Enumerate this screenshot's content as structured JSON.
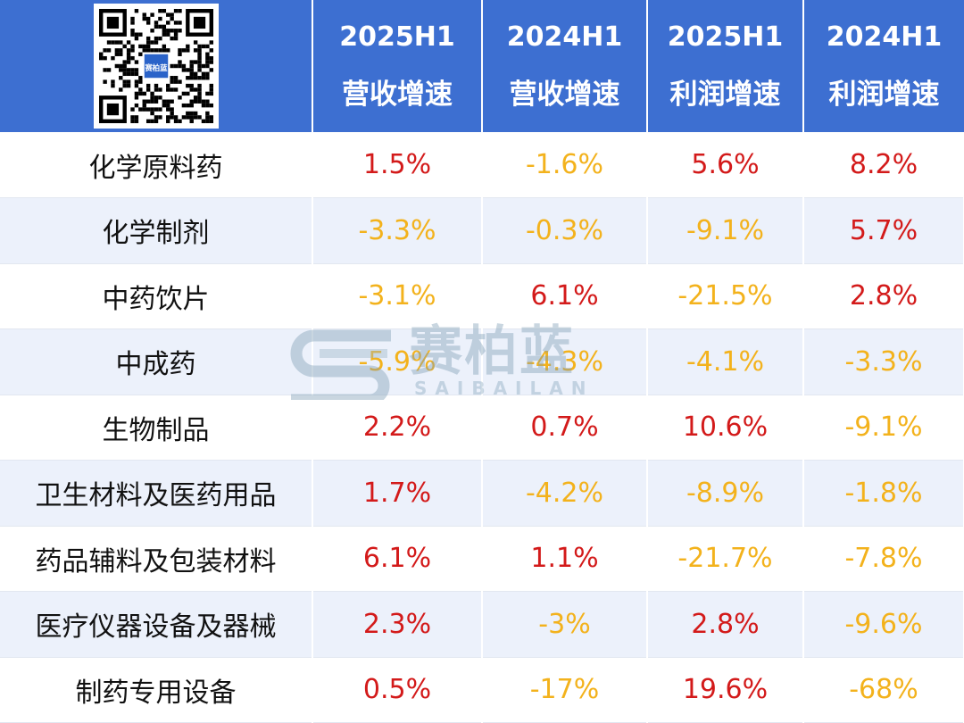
{
  "colors": {
    "header_bg": "#3d6fd1",
    "header_text": "#ffffff",
    "positive": "#d31a1a",
    "negative": "#f3b21c",
    "row_alt": "#ecf1fb"
  },
  "header": {
    "qr_icon": "qr-code-icon",
    "qr_label": "赛柏蓝",
    "columns": [
      {
        "period": "2025H1",
        "metric": "营收增速"
      },
      {
        "period": "2024H1",
        "metric": "营收增速"
      },
      {
        "period": "2025H1",
        "metric": "利润增速"
      },
      {
        "period": "2024H1",
        "metric": "利润增速"
      }
    ]
  },
  "chart_data": {
    "type": "table",
    "columns": [
      "2025H1 营收增速",
      "2024H1 营收增速",
      "2025H1 利润增速",
      "2024H1 利润增速"
    ],
    "rows": [
      {
        "category": "化学原料药",
        "values": [
          "1.5%",
          "-1.6%",
          "5.6%",
          "8.2%"
        ]
      },
      {
        "category": "化学制剂",
        "values": [
          "-3.3%",
          "-0.3%",
          "-9.1%",
          "5.7%"
        ]
      },
      {
        "category": "中药饮片",
        "values": [
          "-3.1%",
          "6.1%",
          "-21.5%",
          "2.8%"
        ]
      },
      {
        "category": "中成药",
        "values": [
          "-5.9%",
          "-4.3%",
          "-4.1%",
          "-3.3%"
        ]
      },
      {
        "category": "生物制品",
        "values": [
          "2.2%",
          "0.7%",
          "10.6%",
          "-9.1%"
        ]
      },
      {
        "category": "卫生材料及医药用品",
        "values": [
          "1.7%",
          "-4.2%",
          "-8.9%",
          "-1.8%"
        ]
      },
      {
        "category": "药品辅料及包装材料",
        "values": [
          "6.1%",
          "1.1%",
          "-21.7%",
          "-7.8%"
        ]
      },
      {
        "category": "医疗仪器设备及器械",
        "values": [
          "2.3%",
          "-3%",
          "2.8%",
          "-9.6%"
        ]
      },
      {
        "category": "制药专用设备",
        "values": [
          "0.5%",
          "-17%",
          "19.6%",
          "-68%"
        ]
      }
    ]
  },
  "watermark": {
    "cn": "赛柏蓝",
    "en": "SAIBAILAN"
  }
}
